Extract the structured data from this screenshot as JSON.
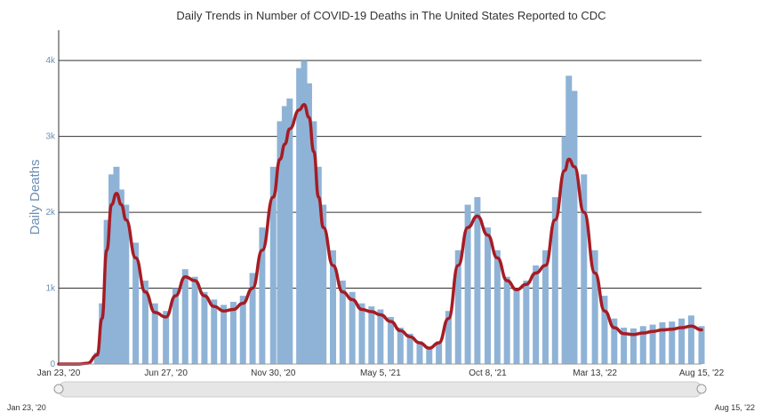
{
  "chart_data": {
    "type": "bar",
    "title": "Daily Trends in Number of COVID-19 Deaths in The United States Reported to CDC",
    "ylabel": "Daily Deaths",
    "xlabel": "",
    "x_start": "2020-01-23",
    "x_end": "2022-08-15",
    "ylim": [
      0,
      4400
    ],
    "y_ticks": [
      0,
      1000,
      2000,
      3000,
      4000
    ],
    "y_tick_labels": [
      "0",
      "1k",
      "2k",
      "3k",
      "4k"
    ],
    "x_tick_labels": [
      "Jan 23, '20",
      "Jun 27, '20",
      "Nov 30, '20",
      "May 5, '21",
      "Oct 8, '21",
      "Mar 13, '22",
      "Aug 15, '22"
    ],
    "x_tick_dates": [
      "2020-01-23",
      "2020-06-27",
      "2020-11-30",
      "2021-05-05",
      "2021-10-08",
      "2022-03-13",
      "2022-08-15"
    ],
    "grid": true,
    "legend": "none",
    "navigator_labels": {
      "start": "Jan 23, '20",
      "end": "Aug 15, '22"
    },
    "colors": {
      "bars": "#8fb3d6",
      "average_line": "#a61c24",
      "grid": "#333333",
      "navigator": "#e6e6e6"
    },
    "series": [
      {
        "type": "bar",
        "sampling": "weekly",
        "x": [
          "2020-01-23",
          "2020-02-20",
          "2020-03-05",
          "2020-03-19",
          "2020-03-26",
          "2020-04-02",
          "2020-04-09",
          "2020-04-16",
          "2020-04-23",
          "2020-04-30",
          "2020-05-14",
          "2020-05-28",
          "2020-06-11",
          "2020-06-27",
          "2020-07-11",
          "2020-07-25",
          "2020-08-08",
          "2020-08-22",
          "2020-09-05",
          "2020-09-19",
          "2020-10-03",
          "2020-10-17",
          "2020-10-31",
          "2020-11-14",
          "2020-11-30",
          "2020-12-10",
          "2020-12-17",
          "2020-12-24",
          "2021-01-07",
          "2021-01-14",
          "2021-01-21",
          "2021-01-28",
          "2021-02-04",
          "2021-02-11",
          "2021-02-25",
          "2021-03-11",
          "2021-03-25",
          "2021-04-08",
          "2021-04-22",
          "2021-05-05",
          "2021-05-20",
          "2021-06-03",
          "2021-06-17",
          "2021-07-01",
          "2021-07-15",
          "2021-07-29",
          "2021-08-12",
          "2021-08-26",
          "2021-09-09",
          "2021-09-23",
          "2021-10-08",
          "2021-10-22",
          "2021-11-05",
          "2021-11-19",
          "2021-12-03",
          "2021-12-17",
          "2021-12-31",
          "2022-01-14",
          "2022-01-28",
          "2022-02-03",
          "2022-02-11",
          "2022-02-25",
          "2022-03-13",
          "2022-03-27",
          "2022-04-10",
          "2022-04-24",
          "2022-05-08",
          "2022-05-22",
          "2022-06-05",
          "2022-06-19",
          "2022-07-03",
          "2022-07-17",
          "2022-07-31",
          "2022-08-15"
        ],
        "values": [
          0,
          0,
          10,
          150,
          800,
          1900,
          2500,
          2600,
          2300,
          2100,
          1600,
          1100,
          800,
          700,
          1000,
          1250,
          1150,
          950,
          850,
          780,
          820,
          900,
          1200,
          1800,
          2600,
          3200,
          3400,
          3500,
          3900,
          4000,
          3700,
          3200,
          2600,
          2100,
          1500,
          1100,
          950,
          800,
          760,
          720,
          620,
          480,
          400,
          300,
          220,
          300,
          700,
          1500,
          2100,
          2200,
          1800,
          1500,
          1150,
          1000,
          1100,
          1300,
          1500,
          2200,
          3000,
          3800,
          3600,
          2500,
          1500,
          900,
          600,
          480,
          470,
          500,
          520,
          550,
          560,
          600,
          640,
          500
        ]
      },
      {
        "type": "line",
        "name": "",
        "x": [
          "2020-01-23",
          "2020-02-20",
          "2020-03-05",
          "2020-03-19",
          "2020-03-26",
          "2020-04-02",
          "2020-04-09",
          "2020-04-16",
          "2020-04-23",
          "2020-04-30",
          "2020-05-14",
          "2020-05-28",
          "2020-06-11",
          "2020-06-27",
          "2020-07-11",
          "2020-07-25",
          "2020-08-08",
          "2020-08-22",
          "2020-09-05",
          "2020-09-19",
          "2020-10-03",
          "2020-10-17",
          "2020-10-31",
          "2020-11-14",
          "2020-11-30",
          "2020-12-10",
          "2020-12-17",
          "2020-12-24",
          "2021-01-07",
          "2021-01-14",
          "2021-01-21",
          "2021-01-28",
          "2021-02-04",
          "2021-02-11",
          "2021-02-25",
          "2021-03-11",
          "2021-03-25",
          "2021-04-08",
          "2021-04-22",
          "2021-05-05",
          "2021-05-20",
          "2021-06-03",
          "2021-06-17",
          "2021-07-01",
          "2021-07-15",
          "2021-07-29",
          "2021-08-12",
          "2021-08-26",
          "2021-09-09",
          "2021-09-23",
          "2021-10-08",
          "2021-10-22",
          "2021-11-05",
          "2021-11-19",
          "2021-12-03",
          "2021-12-17",
          "2021-12-31",
          "2022-01-14",
          "2022-01-28",
          "2022-02-03",
          "2022-02-11",
          "2022-02-25",
          "2022-03-13",
          "2022-03-27",
          "2022-04-10",
          "2022-04-24",
          "2022-05-08",
          "2022-05-22",
          "2022-06-05",
          "2022-06-19",
          "2022-07-03",
          "2022-07-17",
          "2022-07-31",
          "2022-08-15"
        ],
        "values": [
          0,
          0,
          10,
          120,
          600,
          1500,
          2100,
          2250,
          2100,
          1900,
          1400,
          950,
          680,
          620,
          900,
          1150,
          1100,
          900,
          760,
          700,
          720,
          800,
          1000,
          1500,
          2200,
          2700,
          2900,
          3100,
          3350,
          3420,
          3250,
          2800,
          2200,
          1800,
          1300,
          950,
          850,
          720,
          690,
          650,
          560,
          440,
          360,
          280,
          210,
          280,
          600,
          1300,
          1800,
          1950,
          1700,
          1400,
          1100,
          980,
          1050,
          1200,
          1300,
          1900,
          2550,
          2700,
          2600,
          2000,
          1200,
          700,
          480,
          400,
          390,
          410,
          430,
          450,
          460,
          480,
          500,
          450
        ]
      }
    ]
  }
}
